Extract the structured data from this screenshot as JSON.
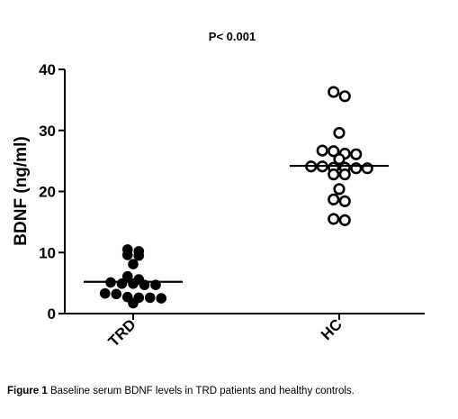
{
  "chart_data": {
    "type": "scatter",
    "title": "P< 0.001",
    "ylabel": "BDNF (ng/ml)",
    "xlabel": "",
    "ylim": [
      0,
      40
    ],
    "yticks": [
      "0",
      "10",
      "20",
      "30",
      "40"
    ],
    "categories": [
      "TRD",
      "HC"
    ],
    "series": [
      {
        "category": "TRD",
        "marker": "filled-circle",
        "median": 5.2,
        "values": [
          10.5,
          10.2,
          9.6,
          9.5,
          8.1,
          6.1,
          5.6,
          5.1,
          4.9,
          4.9,
          4.7,
          4.7,
          3.3,
          3.2,
          2.7,
          2.6,
          2.6,
          2.5,
          1.7
        ]
      },
      {
        "category": "HC",
        "marker": "open-circle",
        "median": 24.2,
        "values": [
          36.3,
          35.6,
          29.6,
          26.7,
          26.6,
          26.2,
          26.1,
          25.3,
          24.1,
          24.1,
          23.9,
          23.9,
          23.8,
          23.8,
          22.8,
          22.8,
          20.4,
          18.7,
          18.4,
          15.5,
          15.3
        ]
      }
    ],
    "colors": {
      "ink": "#000000",
      "background": "#ffffff"
    }
  },
  "figure": {
    "caption_lead": "Figure 1",
    "caption_text": "Baseline serum BDNF levels in TRD patients and healthy controls."
  }
}
